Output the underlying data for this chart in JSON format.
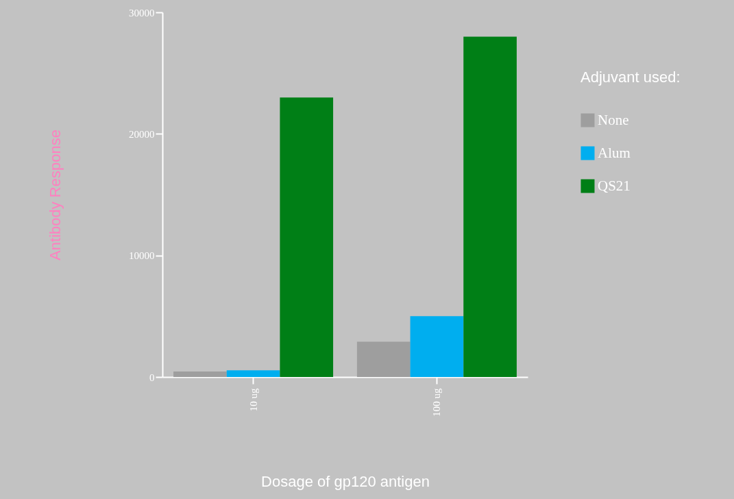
{
  "chart_data": {
    "type": "bar",
    "xlabel": "Dosage of gp120 antigen",
    "ylabel": "Antibody Response",
    "legend_title": "Adjuvant used:",
    "categories": [
      "10 ug",
      "100 ug"
    ],
    "series": [
      {
        "name": "None",
        "color": "#9e9e9e",
        "values": [
          450,
          2900
        ]
      },
      {
        "name": "Alum",
        "color": "#00aeef",
        "values": [
          550,
          5000
        ]
      },
      {
        "name": "QS21",
        "color": "#007f16",
        "values": [
          23000,
          28000
        ]
      }
    ],
    "ylim": [
      0,
      30000
    ],
    "yticks": [
      0,
      10000,
      20000,
      30000
    ],
    "grid": false,
    "legend": "right"
  }
}
